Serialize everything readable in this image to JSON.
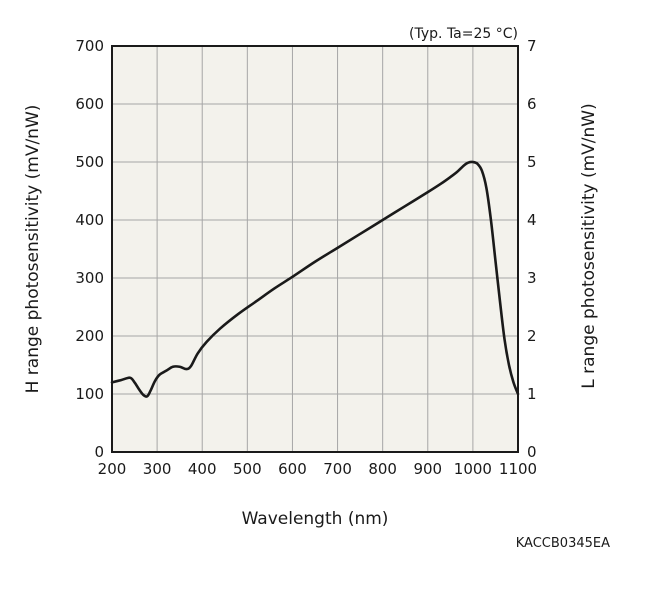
{
  "chart_data": {
    "type": "line",
    "note": "(Typ. Ta=25 °C)",
    "xlabel": "Wavelength (nm)",
    "ylabel_left": "H range photosensitivity (mV/nW)",
    "ylabel_right": "L range photosensitivity (mV/nW)",
    "figure_code": "KACCB0345EA",
    "xlim": [
      200,
      1100
    ],
    "ylim_left": [
      0,
      700
    ],
    "ylim_right": [
      0,
      7
    ],
    "x_ticks": [
      "200",
      "300",
      "400",
      "500",
      "600",
      "700",
      "800",
      "900",
      "1000",
      "1100"
    ],
    "y_ticks_left": [
      "0",
      "100",
      "200",
      "300",
      "400",
      "500",
      "600",
      "700"
    ],
    "y_ticks_right": [
      "0",
      "1",
      "2",
      "3",
      "4",
      "5",
      "6",
      "7"
    ],
    "grid": true,
    "colors": {
      "background": "#f3f2ec",
      "grid": "#a6a6a6",
      "line": "#1a1a1a"
    },
    "series": [
      {
        "x": [
          200,
          220,
          240,
          250,
          260,
          270,
          278,
          285,
          295,
          305,
          320,
          335,
          350,
          365,
          375,
          390,
          410,
          440,
          480,
          520,
          560,
          600,
          650,
          700,
          750,
          800,
          850,
          900,
          930,
          950,
          965,
          980,
          990,
          1000,
          1010,
          1020,
          1030,
          1040,
          1050,
          1060,
          1070,
          1080,
          1090,
          1100
        ],
        "y": [
          120,
          124,
          128,
          120,
          108,
          98,
          96,
          105,
          122,
          133,
          140,
          147,
          147,
          143,
          148,
          170,
          190,
          213,
          238,
          260,
          282,
          302,
          328,
          352,
          376,
          400,
          424,
          448,
          463,
          474,
          483,
          494,
          499,
          500,
          497,
          485,
          455,
          400,
          330,
          260,
          195,
          150,
          120,
          100
        ]
      }
    ]
  }
}
